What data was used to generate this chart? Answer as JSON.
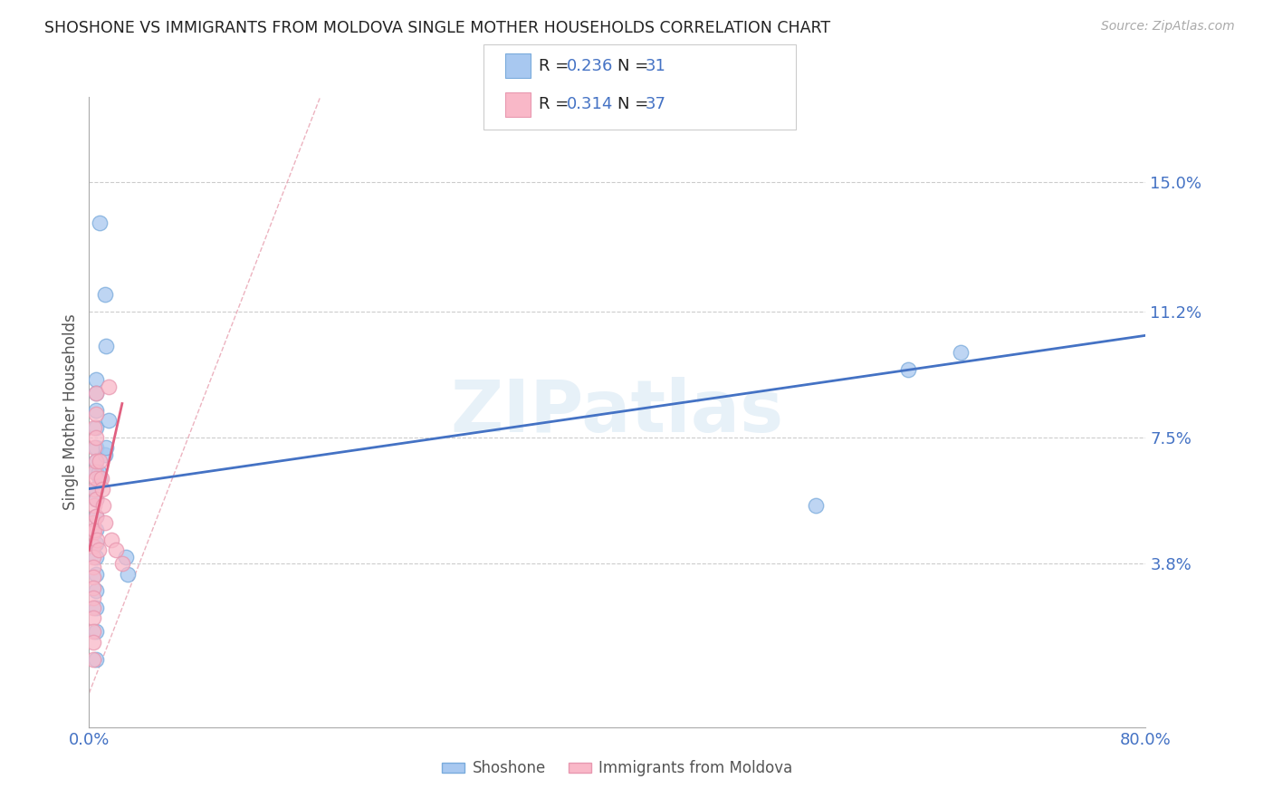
{
  "title": "SHOSHONE VS IMMIGRANTS FROM MOLDOVA SINGLE MOTHER HOUSEHOLDS CORRELATION CHART",
  "source": "Source: ZipAtlas.com",
  "ylabel": "Single Mother Households",
  "ytick_labels": [
    "3.8%",
    "7.5%",
    "11.2%",
    "15.0%"
  ],
  "ytick_values": [
    0.038,
    0.075,
    0.112,
    0.15
  ],
  "xlim": [
    0.0,
    0.8
  ],
  "ylim": [
    -0.01,
    0.175
  ],
  "watermark": "ZIPatlas",
  "legend_blue_r": "R = 0.236",
  "legend_blue_n": "N = 31",
  "legend_pink_r": "R = 0.314",
  "legend_pink_n": "N = 37",
  "legend_blue_label": "Shoshone",
  "legend_pink_label": "Immigrants from Moldova",
  "blue_line_color": "#4472c4",
  "pink_line_color": "#e06080",
  "blue_dot_face": "#a8c8f0",
  "blue_dot_edge": "#7aabdc",
  "pink_dot_face": "#f9b8c8",
  "pink_dot_edge": "#e898b0",
  "ref_line_color": "#e8a0b0",
  "background_color": "#ffffff",
  "grid_color": "#cccccc",
  "title_color": "#222222",
  "axis_label_color": "#555555",
  "tick_color": "#4472c4",
  "legend_text_color": "#222222",
  "shoshone_x": [
    0.008,
    0.012,
    0.013,
    0.005,
    0.005,
    0.005,
    0.005,
    0.005,
    0.005,
    0.005,
    0.005,
    0.005,
    0.005,
    0.005,
    0.005,
    0.005,
    0.005,
    0.005,
    0.005,
    0.005,
    0.005,
    0.007,
    0.008,
    0.012,
    0.013,
    0.015,
    0.028,
    0.029,
    0.55,
    0.62,
    0.66
  ],
  "shoshone_y": [
    0.138,
    0.117,
    0.102,
    0.092,
    0.088,
    0.083,
    0.078,
    0.072,
    0.068,
    0.065,
    0.06,
    0.057,
    0.052,
    0.048,
    0.044,
    0.04,
    0.035,
    0.03,
    0.025,
    0.018,
    0.01,
    0.065,
    0.063,
    0.07,
    0.072,
    0.08,
    0.04,
    0.035,
    0.055,
    0.095,
    0.1
  ],
  "moldova_x": [
    0.003,
    0.003,
    0.003,
    0.003,
    0.003,
    0.003,
    0.003,
    0.003,
    0.003,
    0.003,
    0.003,
    0.003,
    0.003,
    0.004,
    0.004,
    0.004,
    0.004,
    0.004,
    0.004,
    0.005,
    0.005,
    0.005,
    0.005,
    0.005,
    0.005,
    0.005,
    0.006,
    0.007,
    0.008,
    0.009,
    0.01,
    0.011,
    0.012,
    0.015,
    0.017,
    0.02,
    0.025
  ],
  "moldova_y": [
    0.05,
    0.047,
    0.043,
    0.04,
    0.037,
    0.034,
    0.031,
    0.028,
    0.025,
    0.022,
    0.018,
    0.015,
    0.01,
    0.078,
    0.072,
    0.065,
    0.06,
    0.055,
    0.048,
    0.088,
    0.082,
    0.075,
    0.068,
    0.063,
    0.057,
    0.052,
    0.045,
    0.042,
    0.068,
    0.063,
    0.06,
    0.055,
    0.05,
    0.09,
    0.045,
    0.042,
    0.038
  ],
  "blue_trend_x": [
    0.0,
    0.8
  ],
  "blue_trend_y": [
    0.06,
    0.105
  ],
  "pink_trend_x": [
    0.0,
    0.025
  ],
  "pink_trend_y": [
    0.042,
    0.085
  ],
  "ref_line_x": [
    0.0,
    0.175
  ],
  "ref_line_y": [
    0.0,
    0.175
  ]
}
